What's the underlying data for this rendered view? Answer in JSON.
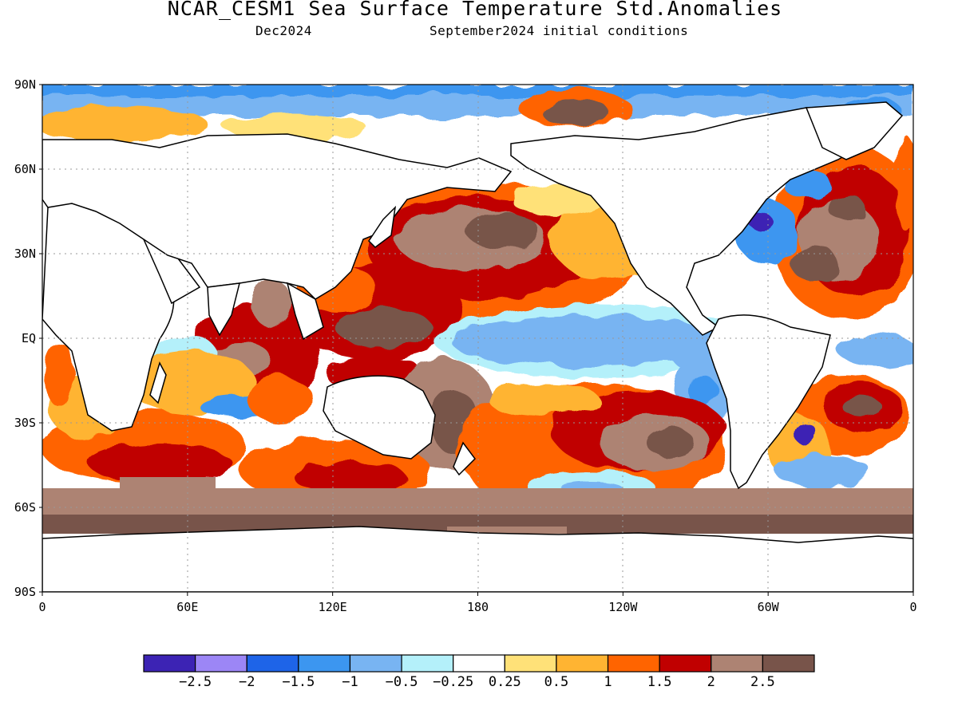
{
  "header": {
    "title": "NCAR_CESM1 Sea Surface Temperature Std.Anomalies",
    "forecast_month": "Dec2024",
    "initial_conditions": "September2024 initial conditions"
  },
  "map": {
    "lat_labels": [
      "90N",
      "60N",
      "30N",
      "EQ",
      "30S",
      "60S",
      "90S"
    ],
    "lon_labels": [
      "0",
      "60E",
      "120E",
      "180",
      "120W",
      "60W",
      "0"
    ],
    "projection": "cylindrical equidistant",
    "grid": "dotted gridlines every 30 degrees"
  },
  "colorbar": {
    "labels": [
      "−2.5",
      "−2",
      "−1.5",
      "−1",
      "−0.5",
      "−0.25",
      "0.25",
      "0.5",
      "1",
      "1.5",
      "2",
      "2.5"
    ],
    "colors": [
      "#3c23b4",
      "#9c86f6",
      "#1e64e8",
      "#3c96f0",
      "#78b4f2",
      "#b4f0fa",
      "#ffffff",
      "#ffe178",
      "#ffb432",
      "#ff6400",
      "#c00000",
      "#ad8373",
      "#78544a"
    ]
  }
}
